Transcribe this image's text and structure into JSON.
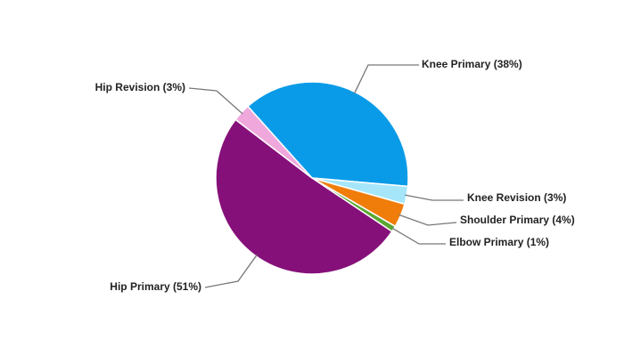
{
  "chart_data": {
    "type": "pie",
    "values": [
      38,
      3,
      4,
      1,
      51,
      3
    ],
    "value_labels": [
      "Knee Primary (38%)",
      "Knee Revision (3%)",
      "Shoulder Primary (4%)",
      "Elbow Primary (1%)",
      "Hip Primary (51%)",
      "Hip Revision (3%)"
    ],
    "colors": [
      "#0a9be8",
      "#a6e6fb",
      "#f07d0a",
      "#5aa832",
      "#86107a",
      "#f0a8dc"
    ]
  }
}
